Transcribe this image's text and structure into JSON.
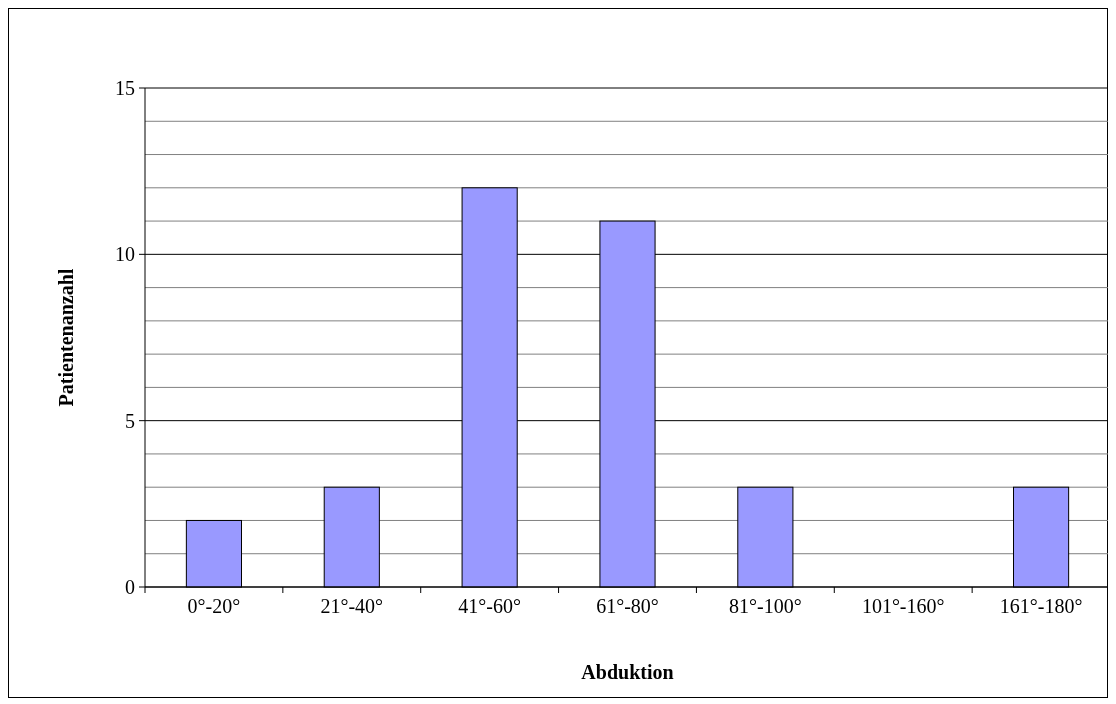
{
  "chart_data": {
    "type": "bar",
    "xlabel": "Abduktion",
    "ylabel": "Patientenanzahl",
    "categories": [
      "0°-20°",
      "21°-40°",
      "41°-60°",
      "61°-80°",
      "81°-100°",
      "101°-160°",
      "161°-180°"
    ],
    "values": [
      2,
      3,
      12,
      11,
      3,
      0,
      3
    ],
    "color": "#9999ff",
    "ylim": [
      0,
      15
    ],
    "yticks": [
      0,
      {
        "value": 1,
        "label": null
      },
      {
        "value": 2,
        "label": null
      },
      {
        "value": 3,
        "label": null
      },
      {
        "value": 4,
        "label": null
      },
      5,
      {
        "value": 6,
        "label": null
      },
      {
        "value": 7,
        "label": null
      },
      {
        "value": 8,
        "label": null
      },
      {
        "value": 9,
        "label": null
      },
      10,
      {
        "value": 11,
        "label": null
      },
      {
        "value": 12,
        "label": null
      },
      {
        "value": 13,
        "label": null
      },
      {
        "value": 14,
        "label": null
      },
      15
    ],
    "grid": "y"
  }
}
